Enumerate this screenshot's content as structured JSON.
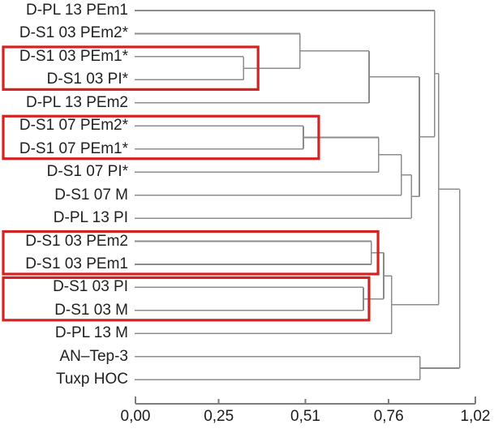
{
  "chart_data": {
    "type": "dendrogram",
    "orientation": "horizontal-right",
    "title": "",
    "leaves": [
      "D-PL 13 PEm1",
      "D-S1 03 PEm2*",
      "D-S1 03 PEm1*",
      "D-S1 03 PI*",
      "D-PL 13 PEm2",
      "D-S1 07 PEm2*",
      "D-S1 07 PEm1*",
      "D-S1 07 PI*",
      "D-S1 07 M",
      "D-PL 13 PI",
      "D-S1 03 PEm2",
      "D-S1 03 PEm1",
      "D-S1 03 PI",
      "D-S1 03 M",
      "D-PL 13 M",
      "AN–Tep-3",
      "Tuxp HOC"
    ],
    "merges": [
      {
        "id": "M0",
        "a": "L2",
        "b": "L3",
        "height": 0.324
      },
      {
        "id": "M1",
        "a": "L1",
        "b": "M0",
        "height": 0.494
      },
      {
        "id": "M2",
        "a": "M1",
        "b": "L4",
        "height": 0.701
      },
      {
        "id": "M3",
        "a": "L5",
        "b": "L6",
        "height": 0.504
      },
      {
        "id": "M4",
        "a": "M3",
        "b": "L7",
        "height": 0.73
      },
      {
        "id": "M5",
        "a": "M4",
        "b": "L8",
        "height": 0.798
      },
      {
        "id": "M6",
        "a": "M5",
        "b": "L9",
        "height": 0.828
      },
      {
        "id": "M7",
        "a": "L10",
        "b": "L11",
        "height": 0.708
      },
      {
        "id": "M8",
        "a": "L12",
        "b": "L13",
        "height": 0.684
      },
      {
        "id": "M9",
        "a": "M7",
        "b": "M8",
        "height": 0.745
      },
      {
        "id": "M10",
        "a": "M9",
        "b": "L14",
        "height": 0.769
      },
      {
        "id": "M11",
        "a": "L15",
        "b": "L16",
        "height": 0.854
      },
      {
        "id": "M12",
        "a": "M2",
        "b": "M6",
        "height": 0.852
      },
      {
        "id": "M13",
        "a": "L0",
        "b": "M12",
        "height": 0.898
      },
      {
        "id": "M14",
        "a": "M13",
        "b": "M10",
        "height": 0.91
      },
      {
        "id": "M15",
        "a": "M14",
        "b": "M11",
        "height": 0.973
      }
    ],
    "highlight_boxes": [
      {
        "leaves": [
          "D-S1 03 PEm1*",
          "D-S1 03 PI*"
        ],
        "from": 2,
        "to": 3,
        "right_height": 0.368
      },
      {
        "leaves": [
          "D-S1 07 PEm2*",
          "D-S1 07 PEm1*"
        ],
        "from": 5,
        "to": 6,
        "right_height": 0.55
      },
      {
        "leaves": [
          "D-S1 03 PEm2",
          "D-S1 03 PEm1"
        ],
        "from": 10,
        "to": 11,
        "right_height": 0.728
      },
      {
        "leaves": [
          "D-S1 03 PI",
          "D-S1 03 M"
        ],
        "from": 12,
        "to": 13,
        "right_height": 0.701
      }
    ],
    "axis": {
      "tick_labels": [
        "0,00",
        "0,25",
        "0,51",
        "0,76",
        "1,02"
      ],
      "tick_values": [
        0,
        0.25,
        0.51,
        0.76,
        1.02
      ],
      "range": [
        0,
        1.02
      ],
      "decimal_separator": ",",
      "position": "bottom"
    },
    "colors": {
      "link_line": "#8c8c8c",
      "axis_line": "#7d7d7d",
      "highlight_box": "#d42222",
      "label_text": "#212121"
    },
    "legend": "none",
    "grid": false
  }
}
